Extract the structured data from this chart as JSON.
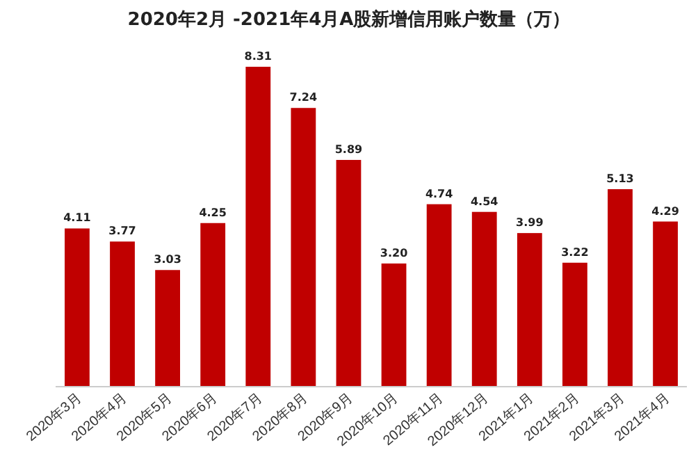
{
  "chart_data": {
    "type": "bar",
    "title": "2020年2月 -2021年4月A股新增信用账户数量（万）",
    "categories": [
      "2020年3月",
      "2020年4月",
      "2020年5月",
      "2020年6月",
      "2020年7月",
      "2020年8月",
      "2020年9月",
      "2020年10月",
      "2020年11月",
      "2020年12月",
      "2021年1月",
      "2021年2月",
      "2021年3月",
      "2021年4月"
    ],
    "values": [
      4.11,
      3.77,
      3.03,
      4.25,
      8.31,
      7.24,
      5.89,
      3.2,
      4.74,
      4.54,
      3.99,
      3.22,
      5.13,
      4.29
    ],
    "value_labels": [
      "4.11",
      "3.77",
      "3.03",
      "4.25",
      "8.31",
      "7.24",
      "5.89",
      "3.20",
      "4.74",
      "4.54",
      "3.99",
      "3.22",
      "5.13",
      "4.29"
    ],
    "color": "#c00000"
  }
}
